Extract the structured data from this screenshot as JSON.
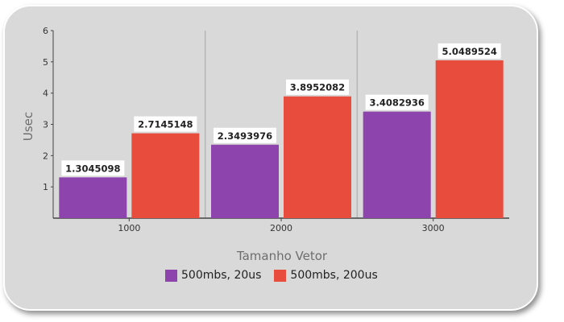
{
  "chart_data": {
    "type": "bar",
    "categories": [
      "1000",
      "2000",
      "3000"
    ],
    "series": [
      {
        "name": "500mbs, 20us",
        "color": "#8e44ad",
        "values": [
          1.3045098,
          2.3493976,
          3.4082936
        ],
        "labels": [
          "1.3045098",
          "2.3493976",
          "3.4082936"
        ]
      },
      {
        "name": "500mbs, 200us",
        "color": "#e74c3c",
        "values": [
          2.7145148,
          3.8952082,
          5.0489524
        ],
        "labels": [
          "2.7145148",
          "3.8952082",
          "5.0489524"
        ]
      }
    ],
    "xlabel": "Tamanho Vetor",
    "ylabel": "Usec",
    "ylim": [
      0,
      6
    ],
    "yticks": [
      1,
      2,
      3,
      4,
      5,
      6
    ],
    "grid": "vertical separators",
    "legend_position": "bottom"
  }
}
